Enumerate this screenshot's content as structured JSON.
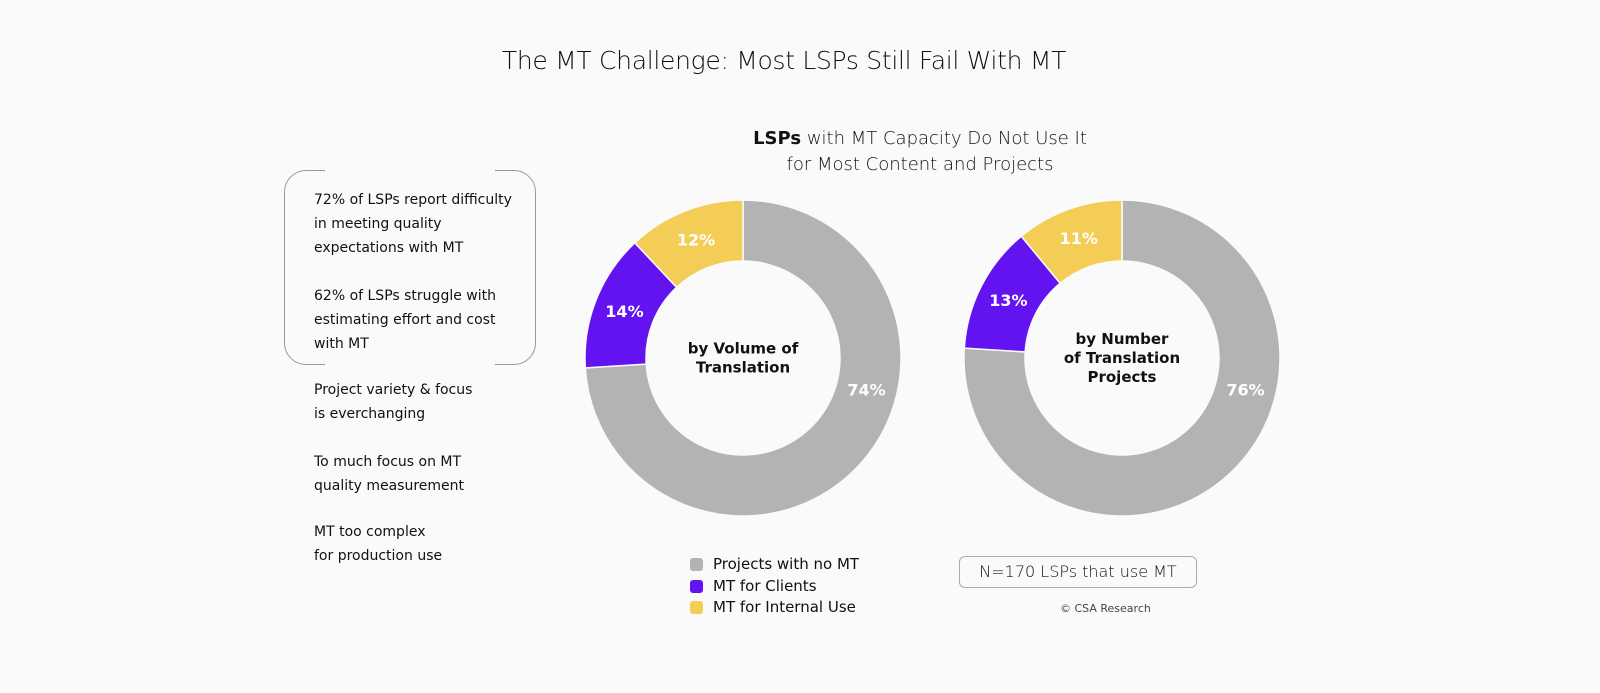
{
  "title": "The MT Challenge: Most LSPs Still Fail With MT",
  "subtitle": {
    "bold": "LSPs",
    "rest1": " with MT Capacity Do Not Use It",
    "line2": "for Most Content and Projects"
  },
  "notes": [
    {
      "lines": [
        "72% of LSPs report difficulty",
        "in meeting quality",
        "expectations with MT"
      ]
    },
    {
      "lines": [
        "62% of LSPs struggle with",
        "estimating effort and cost",
        "with MT"
      ]
    },
    {
      "lines": [
        "Project variety & focus",
        "is everchanging"
      ]
    },
    {
      "lines": [
        "To much focus on MT",
        "quality measurement"
      ]
    },
    {
      "lines": [
        "MT too complex",
        "for production use"
      ]
    }
  ],
  "chart_data": [
    {
      "type": "pie",
      "donut": true,
      "center_label": [
        "by Volume of",
        "Translation"
      ],
      "categories": [
        "Projects with no MT",
        "MT for Clients",
        "MT for Internal Use"
      ],
      "values": [
        74,
        14,
        12
      ],
      "labels": [
        "74%",
        "14%",
        "12%"
      ],
      "colors": [
        "#b3b3b3",
        "#6313f0",
        "#f3cd55"
      ]
    },
    {
      "type": "pie",
      "donut": true,
      "center_label": [
        "by Number",
        "of Translation",
        "Projects"
      ],
      "categories": [
        "Projects with no MT",
        "MT for Clients",
        "MT for Internal Use"
      ],
      "values": [
        76,
        13,
        11
      ],
      "labels": [
        "76%",
        "13%",
        "11%"
      ],
      "colors": [
        "#b3b3b3",
        "#6313f0",
        "#f3cd55"
      ]
    }
  ],
  "legend": [
    {
      "label": "Projects with no MT",
      "color": "#b3b3b3"
    },
    {
      "label": "MT for Clients",
      "color": "#6313f0"
    },
    {
      "label": "MT for Internal Use",
      "color": "#f3cd55"
    }
  ],
  "sample_note": "N=170 LSPs that use MT",
  "copyright": "© CSA Research"
}
